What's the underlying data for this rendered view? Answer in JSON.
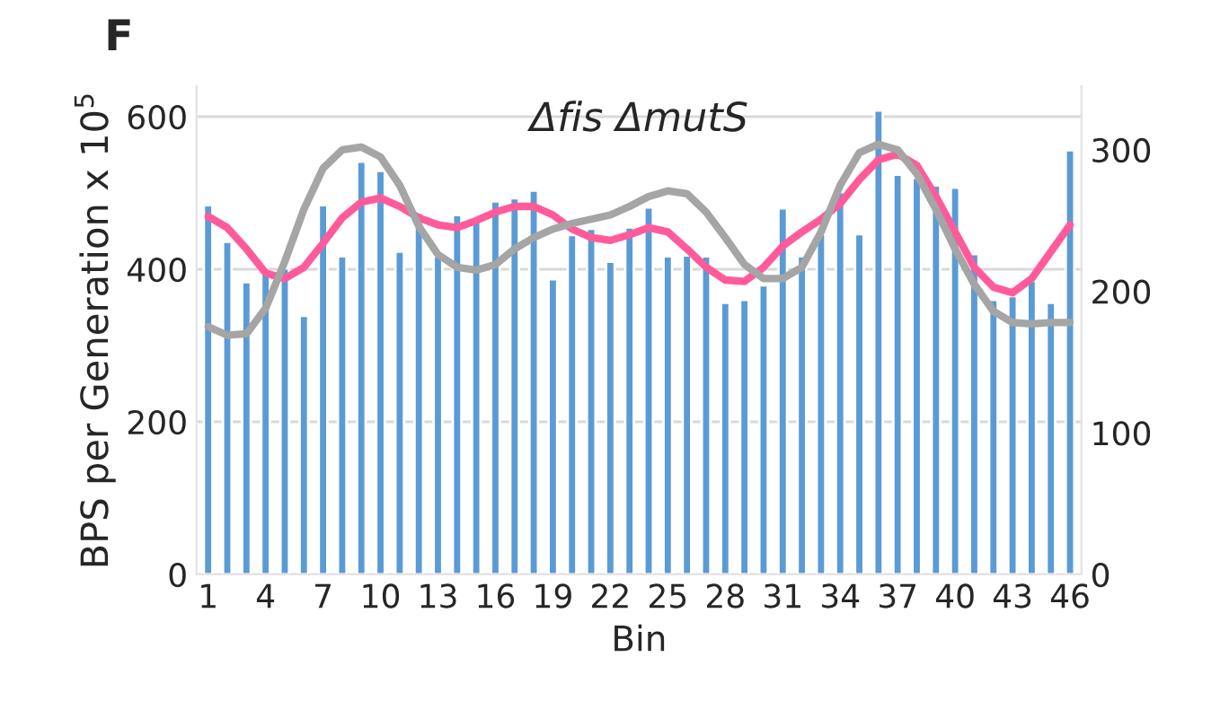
{
  "chart_data": {
    "type": "bar",
    "title": "Δfis ΔmutS",
    "xlabel": "Bin",
    "ylabel": "BPS per Generation x 10$^{5}$",
    "annotations": [
      "F"
    ],
    "categories": [
      "1",
      null,
      null,
      "4",
      null,
      null,
      "7",
      null,
      null,
      "10",
      null,
      null,
      "13",
      null,
      null,
      "16",
      null,
      null,
      "19",
      null,
      null,
      "22",
      null,
      null,
      "25",
      null,
      null,
      "28",
      null,
      null,
      "31",
      null,
      null,
      "34",
      null,
      null,
      "37",
      null,
      null,
      "40",
      null,
      null,
      "43",
      null,
      null,
      "46"
    ],
    "series": [
      {
        "color": "#5b9bd5",
        "values": [
          484,
          436,
          383,
          395,
          401,
          339,
          484,
          417,
          541,
          529,
          423,
          474,
          417,
          471,
          467,
          489,
          493,
          503,
          387,
          445,
          453,
          410,
          455,
          481,
          417,
          418,
          417,
          356,
          360,
          379,
          480,
          417,
          446,
          501,
          446,
          608,
          524,
          520,
          510,
          507,
          420,
          360,
          365,
          385,
          356,
          556
        ]
      },
      {
        "type": "line",
        "axis": "y2",
        "color": "#ff5b9b",
        "values": [
          253,
          245,
          230,
          213,
          209,
          217,
          234,
          252,
          263,
          266,
          260,
          252,
          247,
          245,
          250,
          256,
          260,
          260,
          254,
          244,
          238,
          236,
          240,
          245,
          242,
          230,
          217,
          208,
          207,
          217,
          232,
          242,
          251,
          262,
          279,
          293,
          297,
          289,
          267,
          242,
          217,
          203,
          199,
          209,
          228,
          247
        ]
      },
      {
        "type": "line",
        "axis": "y2",
        "color": "#a5a5a5",
        "values": [
          175,
          169,
          170,
          188,
          221,
          258,
          287,
          300,
          302,
          295,
          275,
          246,
          226,
          217,
          215,
          219,
          230,
          238,
          244,
          248,
          251,
          254,
          260,
          267,
          271,
          269,
          256,
          238,
          219,
          209,
          209,
          217,
          242,
          275,
          298,
          304,
          300,
          283,
          258,
          230,
          205,
          186,
          178,
          177,
          178,
          178
        ]
      }
    ],
    "ylim": [
      0,
      640
    ],
    "yticks": [
      0,
      200,
      400,
      600
    ],
    "y2lim": [
      0,
      345
    ],
    "y2ticks": [
      0,
      100,
      200,
      300
    ],
    "grid": "y",
    "legend": false
  }
}
